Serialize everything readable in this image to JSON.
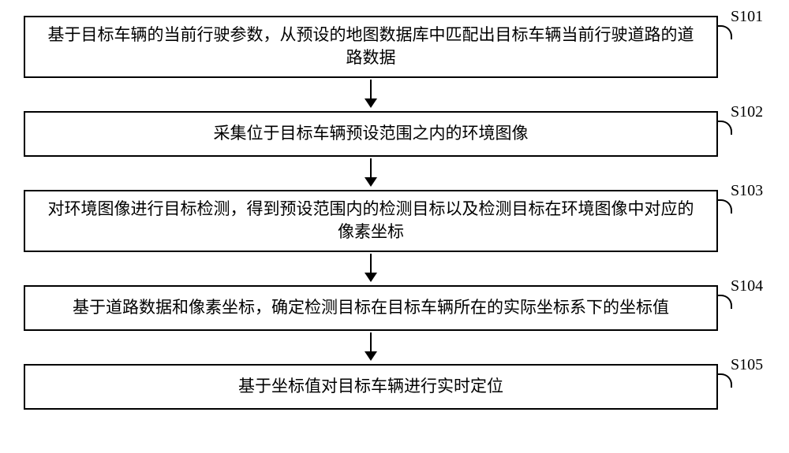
{
  "flowchart": {
    "type": "flowchart",
    "direction": "vertical",
    "box_border_color": "#000000",
    "box_border_width": 2,
    "box_background": "#ffffff",
    "text_color": "#000000",
    "font_family": "SimSun, serif",
    "font_size_pt": 16,
    "label_font_family": "Times New Roman, serif",
    "arrow_color": "#000000",
    "steps": [
      {
        "id": "S101",
        "text": "基于目标车辆的当前行驶参数，从预设的地图数据库中匹配出目标车辆当前行驶道路的道路数据"
      },
      {
        "id": "S102",
        "text": "采集位于目标车辆预设范围之内的环境图像"
      },
      {
        "id": "S103",
        "text": "对环境图像进行目标检测，得到预设范围内的检测目标以及检测目标在环境图像中对应的像素坐标"
      },
      {
        "id": "S104",
        "text": "基于道路数据和像素坐标，确定检测目标在目标车辆所在的实际坐标系下的坐标值"
      },
      {
        "id": "S105",
        "text": "基于坐标值对目标车辆进行实时定位"
      }
    ],
    "edges": [
      {
        "from": "S101",
        "to": "S102"
      },
      {
        "from": "S102",
        "to": "S103"
      },
      {
        "from": "S103",
        "to": "S104"
      },
      {
        "from": "S104",
        "to": "S105"
      }
    ]
  }
}
